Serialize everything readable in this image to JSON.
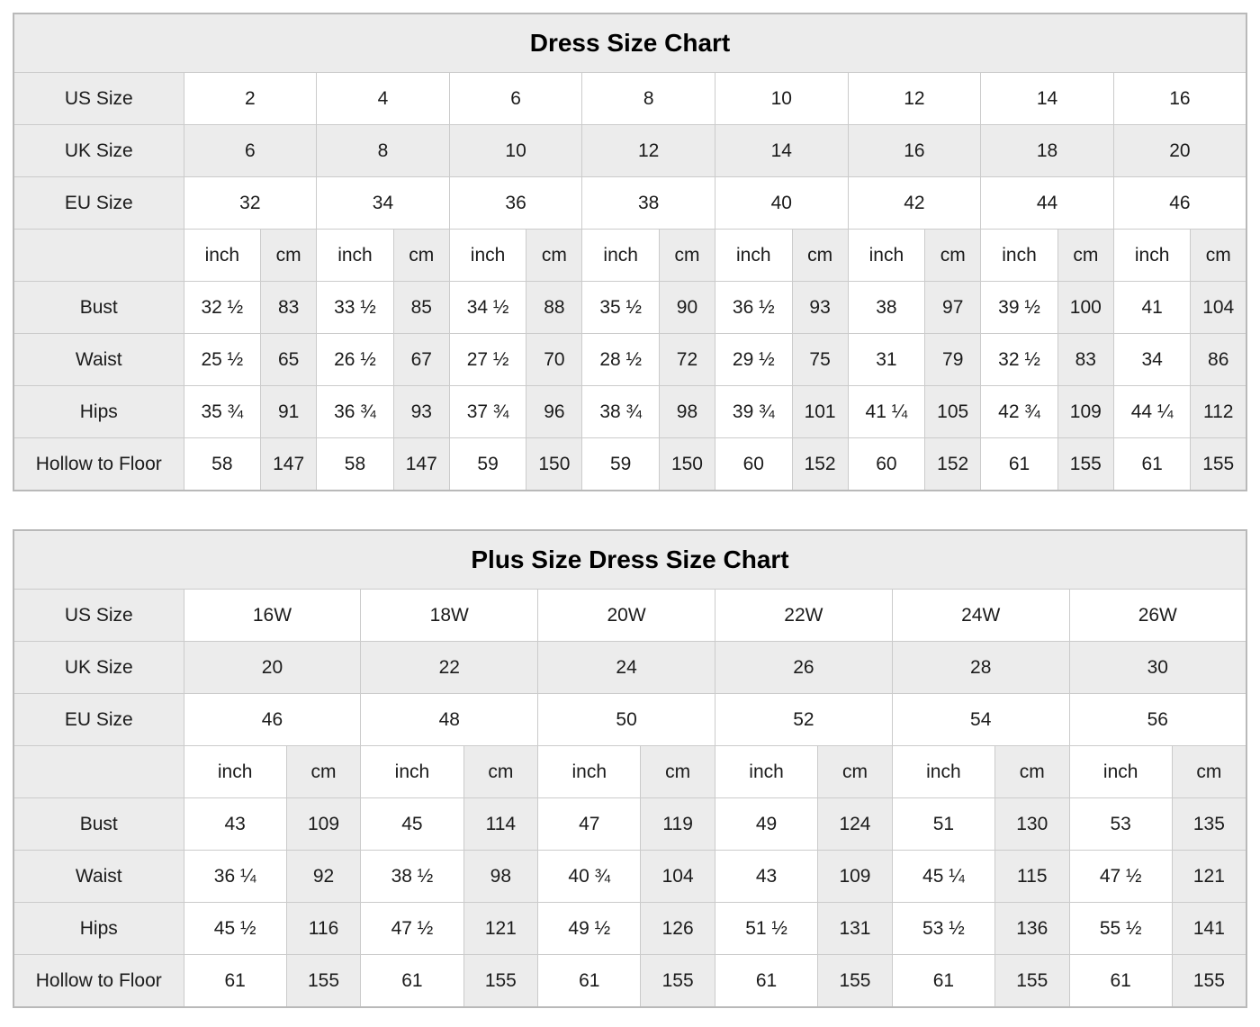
{
  "page": {
    "background_color": "#ffffff",
    "text_color": "#1b1b1b",
    "shaded_cell_color": "#ececec",
    "inner_border_color": "#cbcbcb",
    "outer_border_color": "#b9b9b9"
  },
  "charts": [
    {
      "name": "dress-size-chart",
      "title": "Dress Size Chart",
      "units": [
        "inch",
        "cm"
      ],
      "size_rows": [
        {
          "label": "US Size",
          "shaded": false,
          "values": [
            "2",
            "4",
            "6",
            "8",
            "10",
            "12",
            "14",
            "16"
          ]
        },
        {
          "label": "UK Size",
          "shaded": true,
          "values": [
            "6",
            "8",
            "10",
            "12",
            "14",
            "16",
            "18",
            "20"
          ]
        },
        {
          "label": "EU Size",
          "shaded": false,
          "values": [
            "32",
            "34",
            "36",
            "38",
            "40",
            "42",
            "44",
            "46"
          ]
        }
      ],
      "measure_rows": [
        {
          "label": "Bust",
          "pairs": [
            [
              "32 ½",
              "83"
            ],
            [
              "33 ½",
              "85"
            ],
            [
              "34 ½",
              "88"
            ],
            [
              "35 ½",
              "90"
            ],
            [
              "36 ½",
              "93"
            ],
            [
              "38",
              "97"
            ],
            [
              "39 ½",
              "100"
            ],
            [
              "41",
              "104"
            ]
          ]
        },
        {
          "label": "Waist",
          "pairs": [
            [
              "25 ½",
              "65"
            ],
            [
              "26 ½",
              "67"
            ],
            [
              "27 ½",
              "70"
            ],
            [
              "28 ½",
              "72"
            ],
            [
              "29 ½",
              "75"
            ],
            [
              "31",
              "79"
            ],
            [
              "32 ½",
              "83"
            ],
            [
              "34",
              "86"
            ]
          ]
        },
        {
          "label": "Hips",
          "pairs": [
            [
              "35 ¾",
              "91"
            ],
            [
              "36 ¾",
              "93"
            ],
            [
              "37 ¾",
              "96"
            ],
            [
              "38 ¾",
              "98"
            ],
            [
              "39 ¾",
              "101"
            ],
            [
              "41 ¼",
              "105"
            ],
            [
              "42 ¾",
              "109"
            ],
            [
              "44 ¼",
              "112"
            ]
          ]
        },
        {
          "label": "Hollow to Floor",
          "pairs": [
            [
              "58",
              "147"
            ],
            [
              "58",
              "147"
            ],
            [
              "59",
              "150"
            ],
            [
              "59",
              "150"
            ],
            [
              "60",
              "152"
            ],
            [
              "60",
              "152"
            ],
            [
              "61",
              "155"
            ],
            [
              "61",
              "155"
            ]
          ]
        }
      ]
    },
    {
      "name": "plus-size-dress-size-chart",
      "title": "Plus Size Dress Size Chart",
      "units": [
        "inch",
        "cm"
      ],
      "size_rows": [
        {
          "label": "US Size",
          "shaded": false,
          "values": [
            "16W",
            "18W",
            "20W",
            "22W",
            "24W",
            "26W"
          ]
        },
        {
          "label": "UK Size",
          "shaded": true,
          "values": [
            "20",
            "22",
            "24",
            "26",
            "28",
            "30"
          ]
        },
        {
          "label": "EU Size",
          "shaded": false,
          "values": [
            "46",
            "48",
            "50",
            "52",
            "54",
            "56"
          ]
        }
      ],
      "measure_rows": [
        {
          "label": "Bust",
          "pairs": [
            [
              "43",
              "109"
            ],
            [
              "45",
              "114"
            ],
            [
              "47",
              "119"
            ],
            [
              "49",
              "124"
            ],
            [
              "51",
              "130"
            ],
            [
              "53",
              "135"
            ]
          ]
        },
        {
          "label": "Waist",
          "pairs": [
            [
              "36 ¼",
              "92"
            ],
            [
              "38 ½",
              "98"
            ],
            [
              "40 ¾",
              "104"
            ],
            [
              "43",
              "109"
            ],
            [
              "45 ¼",
              "115"
            ],
            [
              "47 ½",
              "121"
            ]
          ]
        },
        {
          "label": "Hips",
          "pairs": [
            [
              "45 ½",
              "116"
            ],
            [
              "47 ½",
              "121"
            ],
            [
              "49 ½",
              "126"
            ],
            [
              "51 ½",
              "131"
            ],
            [
              "53 ½",
              "136"
            ],
            [
              "55 ½",
              "141"
            ]
          ]
        },
        {
          "label": "Hollow to Floor",
          "pairs": [
            [
              "61",
              "155"
            ],
            [
              "61",
              "155"
            ],
            [
              "61",
              "155"
            ],
            [
              "61",
              "155"
            ],
            [
              "61",
              "155"
            ],
            [
              "61",
              "155"
            ]
          ]
        }
      ]
    }
  ]
}
